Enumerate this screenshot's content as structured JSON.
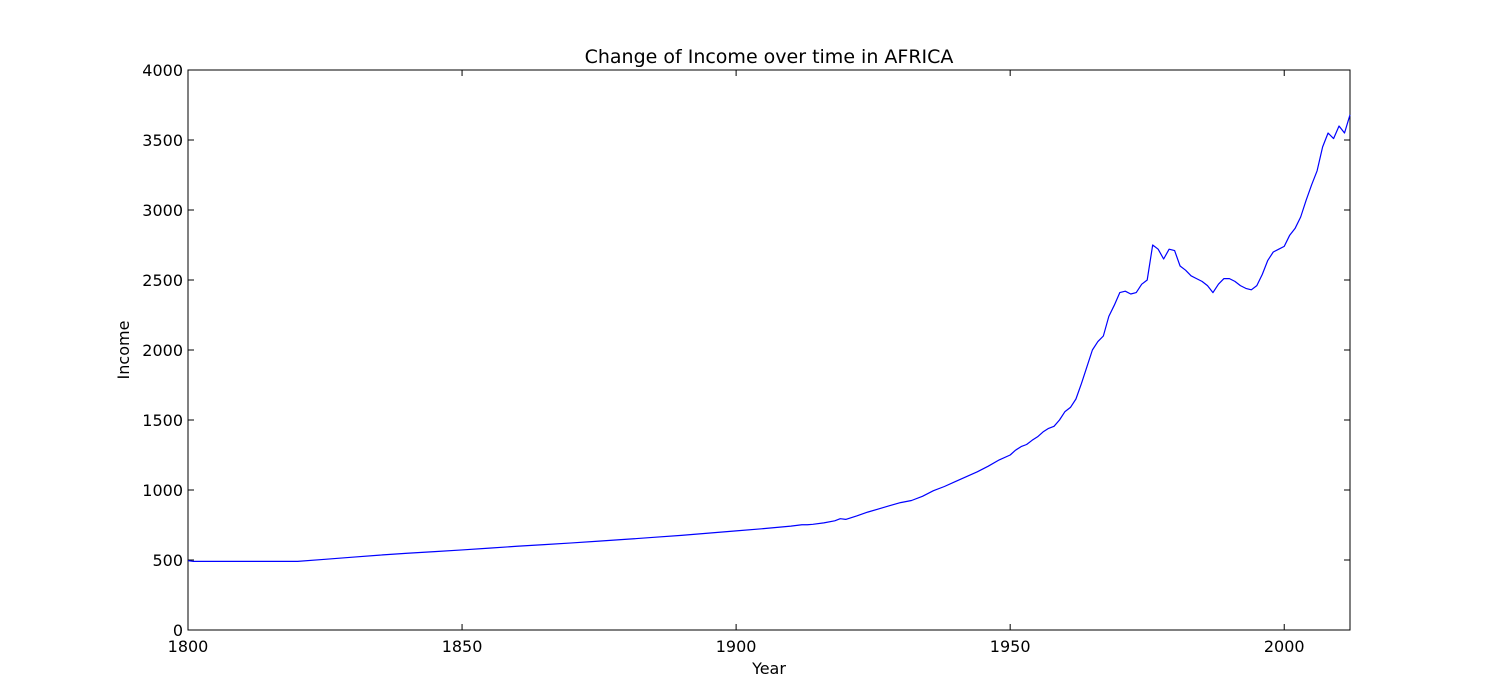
{
  "chart_data": {
    "type": "line",
    "title": "Change of Income over time in AFRICA",
    "xlabel": "Year",
    "ylabel": "Income",
    "xlim": [
      1800,
      2012
    ],
    "ylim": [
      0,
      4000
    ],
    "x_ticks": [
      1800,
      1850,
      1900,
      1950,
      2000
    ],
    "y_ticks": [
      0,
      500,
      1000,
      1500,
      2000,
      2500,
      3000,
      3500,
      4000
    ],
    "grid": false,
    "legend": "none",
    "series_color": "#0000ff",
    "series": [
      {
        "x": [
          1800,
          1801,
          1805,
          1810,
          1815,
          1820,
          1825,
          1830,
          1835,
          1840,
          1845,
          1850,
          1855,
          1860,
          1865,
          1870,
          1875,
          1880,
          1885,
          1890,
          1895,
          1900,
          1905,
          1910,
          1912,
          1913,
          1914,
          1916,
          1918,
          1919,
          1920,
          1922,
          1924,
          1926,
          1928,
          1930,
          1932,
          1934,
          1936,
          1938,
          1940,
          1942,
          1944,
          1946,
          1948,
          1950,
          1951,
          1952,
          1953,
          1954,
          1955,
          1956,
          1957,
          1958,
          1959,
          1960,
          1961,
          1962,
          1963,
          1964,
          1965,
          1966,
          1967,
          1968,
          1969,
          1970,
          1971,
          1972,
          1973,
          1974,
          1975,
          1976,
          1977,
          1978,
          1979,
          1980,
          1981,
          1982,
          1983,
          1984,
          1985,
          1986,
          1987,
          1988,
          1989,
          1990,
          1991,
          1992,
          1993,
          1994,
          1995,
          1996,
          1997,
          1998,
          1999,
          2000,
          2001,
          2002,
          2003,
          2004,
          2005,
          2006,
          2007,
          2008,
          2009,
          2010,
          2011,
          2012
        ],
        "values": [
          495,
          490,
          490,
          490,
          490,
          490,
          505,
          520,
          535,
          548,
          560,
          572,
          585,
          598,
          610,
          622,
          635,
          648,
          662,
          676,
          692,
          708,
          724,
          742,
          752,
          752,
          755,
          765,
          780,
          795,
          790,
          815,
          842,
          865,
          888,
          910,
          925,
          955,
          995,
          1025,
          1060,
          1095,
          1130,
          1170,
          1215,
          1250,
          1285,
          1310,
          1325,
          1355,
          1380,
          1415,
          1440,
          1455,
          1500,
          1560,
          1590,
          1650,
          1760,
          1880,
          2000,
          2060,
          2100,
          2240,
          2320,
          2410,
          2420,
          2400,
          2410,
          2470,
          2500,
          2750,
          2720,
          2650,
          2720,
          2710,
          2600,
          2570,
          2530,
          2510,
          2490,
          2460,
          2410,
          2470,
          2510,
          2510,
          2490,
          2460,
          2440,
          2430,
          2460,
          2540,
          2640,
          2700,
          2720,
          2740,
          2820,
          2870,
          2950,
          3070,
          3180,
          3280,
          3450,
          3550,
          3510,
          3600,
          3550,
          3680
        ]
      }
    ]
  }
}
